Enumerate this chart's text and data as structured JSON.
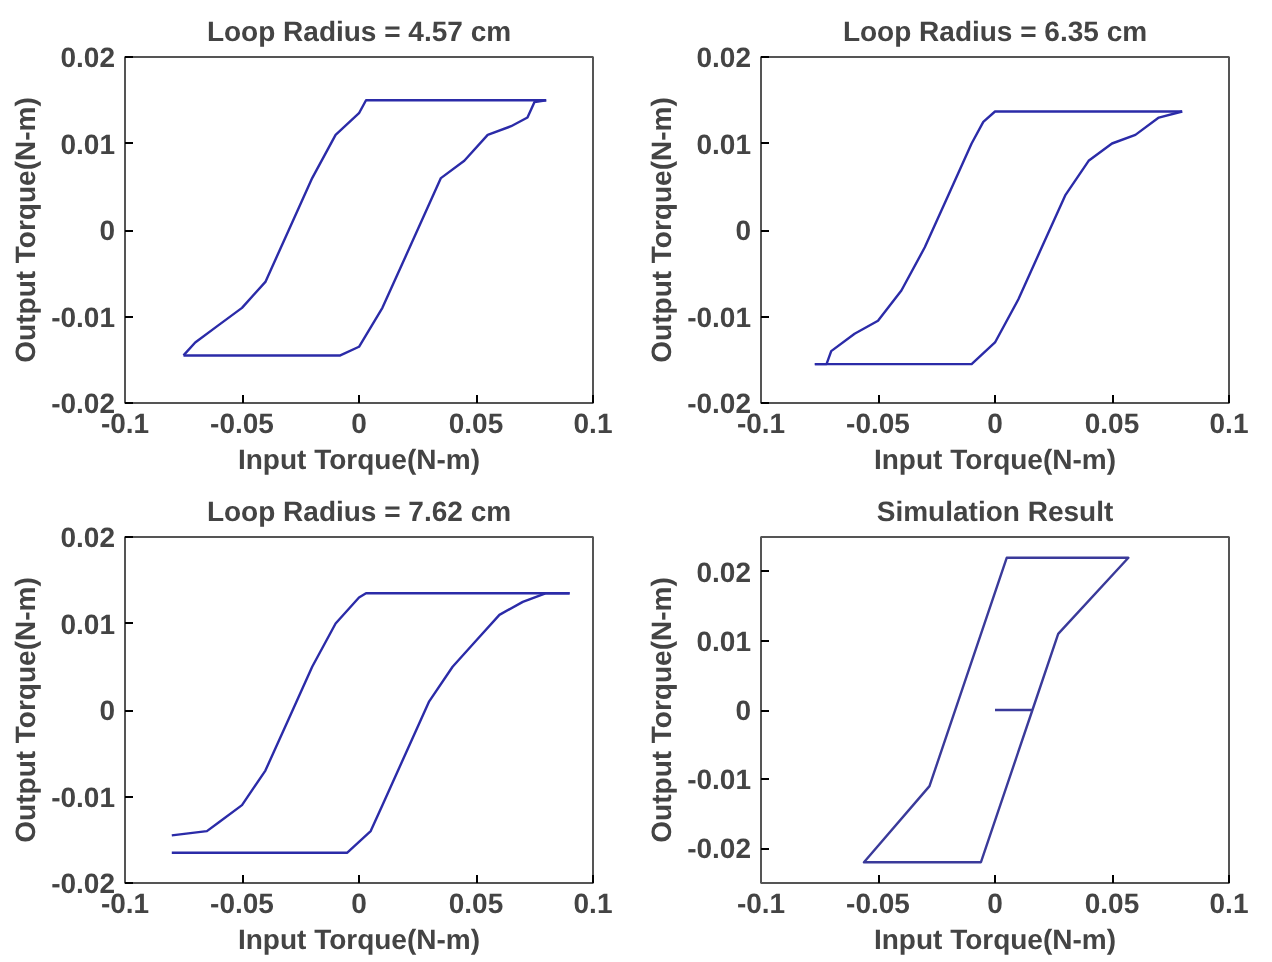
{
  "chart_data": [
    {
      "type": "line",
      "title": "Loop Radius = 4.57 cm",
      "xlabel": "Input Torque(N-m)",
      "ylabel": "Output Torque(N-m)",
      "xlim": [
        -0.1,
        0.1
      ],
      "ylim": [
        -0.02,
        0.02
      ],
      "xticks": [
        -0.1,
        -0.05,
        0,
        0.05,
        0.1
      ],
      "yticks": [
        -0.02,
        -0.01,
        0,
        0.01,
        0.02
      ],
      "grid": false,
      "marker": "none",
      "line_style": "solid",
      "series": [
        {
          "color": "#2b2ba8",
          "x": [
            0.08,
            0.003,
            0,
            -0.01,
            -0.02,
            -0.03,
            -0.04,
            -0.05,
            -0.06,
            -0.07,
            -0.075
          ],
          "values": [
            0.015,
            0.015,
            0.0135,
            0.011,
            0.006,
            0,
            -0.006,
            -0.009,
            -0.011,
            -0.013,
            -0.0145
          ]
        },
        {
          "color": "#2b2ba8",
          "x": [
            -0.075,
            -0.008,
            0,
            0.01,
            0.02,
            0.03,
            0.035,
            0.045,
            0.055,
            0.065,
            0.072,
            0.075,
            0.08
          ],
          "values": [
            -0.0145,
            -0.0145,
            -0.0135,
            -0.009,
            -0.003,
            0.003,
            0.006,
            0.008,
            0.011,
            0.012,
            0.013,
            0.0148,
            0.015
          ]
        }
      ]
    },
    {
      "type": "line",
      "title": "Loop Radius = 6.35 cm",
      "xlabel": "Input Torque(N-m)",
      "ylabel": "Output Torque(N-m)",
      "xlim": [
        -0.1,
        0.1
      ],
      "ylim": [
        -0.02,
        0.02
      ],
      "xticks": [
        -0.1,
        -0.05,
        0,
        0.05,
        0.1
      ],
      "yticks": [
        -0.02,
        -0.01,
        0,
        0.01,
        0.02
      ],
      "grid": false,
      "marker": "none",
      "line_style": "solid",
      "series": [
        {
          "color": "#2b2ba8",
          "x": [
            0.08,
            0.0,
            -0.005,
            -0.01,
            -0.02,
            -0.03,
            -0.04,
            -0.05,
            -0.06,
            -0.07,
            -0.072,
            -0.077
          ],
          "values": [
            0.0137,
            0.0137,
            0.0125,
            0.01,
            0.004,
            -0.002,
            -0.007,
            -0.0105,
            -0.012,
            -0.014,
            -0.0155,
            -0.0155
          ]
        },
        {
          "color": "#2b2ba8",
          "x": [
            -0.077,
            -0.01,
            0,
            0.01,
            0.02,
            0.03,
            0.04,
            0.05,
            0.06,
            0.07,
            0.08
          ],
          "values": [
            -0.0155,
            -0.0155,
            -0.013,
            -0.008,
            -0.002,
            0.004,
            0.008,
            0.01,
            0.011,
            0.013,
            0.0137
          ]
        }
      ]
    },
    {
      "type": "line",
      "title": "Loop Radius = 7.62 cm",
      "xlabel": "Input Torque(N-m)",
      "ylabel": "Output Torque(N-m)",
      "xlim": [
        -0.1,
        0.1
      ],
      "ylim": [
        -0.02,
        0.02
      ],
      "xticks": [
        -0.1,
        -0.05,
        0,
        0.05,
        0.1
      ],
      "yticks": [
        -0.02,
        -0.01,
        0,
        0.01,
        0.02
      ],
      "grid": false,
      "marker": "none",
      "line_style": "solid",
      "series": [
        {
          "color": "#2b2ba8",
          "x": [
            0.09,
            0.003,
            0,
            -0.01,
            -0.02,
            -0.03,
            -0.04,
            -0.05,
            -0.06,
            -0.065,
            -0.08
          ],
          "values": [
            0.0135,
            0.0135,
            0.013,
            0.01,
            0.005,
            -0.001,
            -0.007,
            -0.011,
            -0.013,
            -0.014,
            -0.0145
          ]
        },
        {
          "color": "#2b2ba8",
          "x": [
            -0.08,
            -0.005,
            0.005,
            0.01,
            0.02,
            0.03,
            0.04,
            0.05,
            0.06,
            0.07,
            0.08,
            0.09
          ],
          "values": [
            -0.0165,
            -0.0165,
            -0.014,
            -0.011,
            -0.005,
            0.001,
            0.005,
            0.008,
            0.011,
            0.0125,
            0.0135,
            0.0135
          ]
        }
      ]
    },
    {
      "type": "line",
      "title": "Simulation Result",
      "xlabel": "Input Torque(N-m)",
      "ylabel": "Output Torque(N-m)",
      "xlim": [
        -0.1,
        0.1
      ],
      "ylim": [
        -0.025,
        0.025
      ],
      "xticks": [
        -0.1,
        -0.05,
        0,
        0.05,
        0.1
      ],
      "yticks": [
        -0.02,
        -0.01,
        0,
        0.01,
        0.02
      ],
      "grid": false,
      "marker": "none",
      "line_style": "solid",
      "series": [
        {
          "color": "#3a3a9a",
          "x": [
            0,
            0.016,
            0.027,
            0.057,
            0.005,
            -0.028,
            -0.056,
            -0.006,
            0.016
          ],
          "values": [
            0,
            0,
            0.011,
            0.022,
            0.022,
            -0.011,
            -0.022,
            -0.022,
            0
          ]
        }
      ]
    }
  ]
}
